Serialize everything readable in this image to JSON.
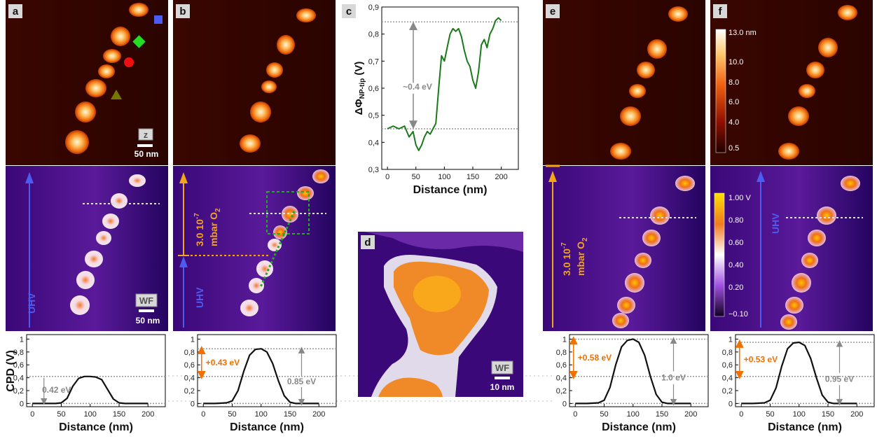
{
  "panels": {
    "a": {
      "label": "a",
      "z_badge": "z",
      "z_scale": "50 nm",
      "wf_badge": "WF",
      "wf_scale": "50 nm",
      "uhv": "UHV"
    },
    "b": {
      "label": "b",
      "pressure_line1": "3.0 10",
      "pressure_exp": "-7",
      "pressure_line2": "mbar O",
      "pressure_sub": "2",
      "uhv": "UHV"
    },
    "c": {
      "label": "c"
    },
    "d": {
      "label": "d",
      "wf_badge": "WF",
      "wf_scale": "10 nm"
    },
    "e": {
      "label": "e",
      "pressure_line1": "3.0 10",
      "pressure_exp": "-7",
      "pressure_line2": "mbar O",
      "pressure_sub": "2"
    },
    "f": {
      "label": "f",
      "uhv": "UHV"
    }
  },
  "colorbars": {
    "height": {
      "ticks": [
        "13.0 nm",
        "10.0",
        "8.0",
        "6.0",
        "4.0",
        "0.5"
      ]
    },
    "wf": {
      "ticks": [
        "1.00 V",
        "0.80",
        "0.60",
        "0.40",
        "0.20",
        "−0.10"
      ]
    }
  },
  "colors": {
    "uhv": "#4c5cf0",
    "o2": "#f2a516",
    "cpd_gain": "#f07000",
    "guide": "#999999",
    "profile_c": "#1a7a1a",
    "ref_dot": "#dddddd"
  },
  "chart_data": [
    {
      "type": "line",
      "title": "",
      "xlabel": "Distance (nm)",
      "ylabel": "ΔΦNP-tip (V)",
      "ylabel_main": "ΔΦ",
      "ylabel_sub": "NP-tip",
      "ylabel_unit": " (V)",
      "xlim": [
        -10,
        230
      ],
      "ylim": [
        0.3,
        0.9
      ],
      "xticks": [
        "0",
        "50",
        "100",
        "150",
        "200"
      ],
      "yticks": [
        "0,3",
        "0,4",
        "0,5",
        "0,6",
        "0,7",
        "0,8",
        "0,9"
      ],
      "reference_lines": [
        0.45,
        0.845
      ],
      "annotation": "~0.4 eV",
      "series": [
        {
          "x": [
            0,
            10,
            20,
            30,
            38,
            45,
            50,
            55,
            60,
            65,
            70,
            75,
            80,
            85,
            90,
            95,
            100,
            105,
            110,
            115,
            120,
            125,
            130,
            135,
            140,
            145,
            150,
            155,
            160,
            165,
            170,
            175,
            180,
            185,
            190,
            195,
            200
          ],
          "y": [
            0.45,
            0.46,
            0.45,
            0.46,
            0.42,
            0.44,
            0.39,
            0.37,
            0.39,
            0.42,
            0.44,
            0.43,
            0.45,
            0.47,
            0.6,
            0.72,
            0.7,
            0.75,
            0.8,
            0.82,
            0.81,
            0.82,
            0.79,
            0.74,
            0.7,
            0.68,
            0.63,
            0.6,
            0.66,
            0.76,
            0.78,
            0.75,
            0.8,
            0.82,
            0.85,
            0.86,
            0.85
          ]
        }
      ]
    },
    {
      "type": "line",
      "panel": "a",
      "xlabel": "Distance (nm)",
      "ylabel": "CPD (V)",
      "xlim": [
        -10,
        230
      ],
      "ylim": [
        -0.05,
        1.07
      ],
      "xticks": [
        "0",
        "50",
        "100",
        "150",
        "200"
      ],
      "yticks": [
        "0",
        "0,2",
        "0,4",
        "0,6",
        "0,8",
        "1"
      ],
      "reference_lines": [
        0,
        0.42
      ],
      "annotation": "0.42 eV",
      "series": [
        {
          "x": [
            0,
            20,
            40,
            50,
            60,
            70,
            80,
            90,
            100,
            110,
            120,
            130,
            140,
            150,
            160,
            180,
            200
          ],
          "y": [
            0,
            0,
            0,
            0.01,
            0.08,
            0.27,
            0.39,
            0.42,
            0.42,
            0.41,
            0.37,
            0.22,
            0.07,
            0.01,
            0,
            0,
            0
          ]
        }
      ]
    },
    {
      "type": "line",
      "panel": "b",
      "xlabel": "Distance (nm)",
      "ylabel": "",
      "xlim": [
        -10,
        230
      ],
      "ylim": [
        -0.05,
        1.07
      ],
      "xticks": [
        "0",
        "50",
        "100",
        "150",
        "200"
      ],
      "yticks": [
        "0",
        "0,2",
        "0,4",
        "0,6",
        "0,8",
        "1"
      ],
      "reference_lines": [
        0,
        0.42,
        0.85
      ],
      "annotation_gain": "+0.43 eV",
      "annotation_total": "0.85 eV",
      "series": [
        {
          "x": [
            0,
            20,
            40,
            50,
            60,
            70,
            80,
            90,
            100,
            110,
            120,
            130,
            140,
            150,
            160,
            180,
            200
          ],
          "y": [
            0,
            0,
            0.01,
            0.04,
            0.2,
            0.5,
            0.75,
            0.84,
            0.85,
            0.8,
            0.62,
            0.35,
            0.12,
            0.02,
            0,
            0,
            0
          ]
        }
      ]
    },
    {
      "type": "line",
      "panel": "e",
      "xlabel": "Distance (nm)",
      "ylabel": "",
      "xlim": [
        -10,
        230
      ],
      "ylim": [
        -0.05,
        1.07
      ],
      "xticks": [
        "0",
        "50",
        "100",
        "150",
        "200"
      ],
      "yticks": [
        "0",
        "0,2",
        "0,4",
        "0,6",
        "0,8",
        "1"
      ],
      "reference_lines": [
        0,
        0.42,
        1.0
      ],
      "annotation_gain": "+0.58 eV",
      "annotation_total": "1.0 eV",
      "series": [
        {
          "x": [
            0,
            20,
            40,
            50,
            60,
            70,
            80,
            90,
            100,
            110,
            120,
            130,
            140,
            150,
            160,
            180,
            200
          ],
          "y": [
            0,
            0,
            0.01,
            0.05,
            0.25,
            0.6,
            0.88,
            0.98,
            1.0,
            0.95,
            0.75,
            0.42,
            0.14,
            0.02,
            0,
            0,
            0
          ]
        }
      ]
    },
    {
      "type": "line",
      "panel": "f",
      "xlabel": "Distance (nm)",
      "ylabel": "",
      "xlim": [
        -10,
        230
      ],
      "ylim": [
        -0.05,
        1.07
      ],
      "xticks": [
        "0",
        "50",
        "100",
        "150",
        "200"
      ],
      "yticks": [
        "0",
        "0,2",
        "0,4",
        "0,6",
        "0,8",
        "1"
      ],
      "reference_lines": [
        0,
        0.42,
        0.95
      ],
      "annotation_gain": "+0.53 eV",
      "annotation_total": "0.95 eV",
      "series": [
        {
          "x": [
            0,
            20,
            40,
            50,
            60,
            70,
            80,
            90,
            100,
            110,
            120,
            130,
            140,
            150,
            160,
            180,
            200
          ],
          "y": [
            0,
            0,
            0.01,
            0.05,
            0.24,
            0.58,
            0.85,
            0.94,
            0.95,
            0.9,
            0.7,
            0.4,
            0.13,
            0.02,
            0,
            0,
            0
          ]
        }
      ]
    }
  ]
}
